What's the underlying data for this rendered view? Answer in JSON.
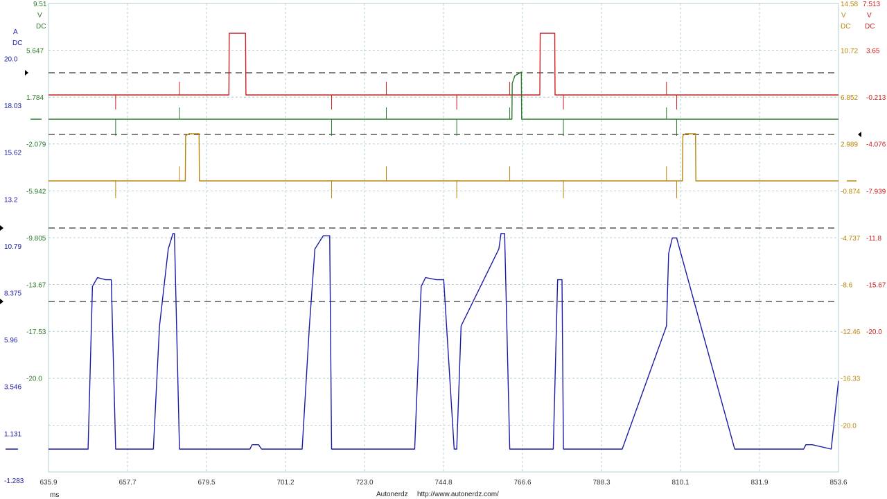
{
  "colors": {
    "current": "#1a1aa8",
    "signal_red": "#cc2020",
    "signal_green": "#2a7a2a",
    "signal_gold": "#b8860b",
    "grid": "#9fc4c8",
    "refline": "#000000"
  },
  "x_unit": "ms",
  "footer": {
    "brand": "Autonerdz",
    "url": "http://www.autonerdz.com/"
  },
  "axes": {
    "current": {
      "unit": "A",
      "coupling": "DC",
      "ticks": [
        "20.0",
        "18.03",
        "15.62",
        "13.2",
        "10.79",
        "8.375",
        "5.96",
        "3.546",
        "1.131",
        "-1.283"
      ]
    },
    "green": {
      "top": "9.51",
      "unit": "V",
      "coupling": "DC",
      "ticks": [
        "5.647",
        "1.784",
        "-2.079",
        "-5.942",
        "-9.805",
        "-13.67",
        "-17.53",
        "-20.0"
      ]
    },
    "gold": {
      "top": "14.58",
      "unit": "V",
      "coupling": "DC",
      "ticks": [
        "10.72",
        "6.852",
        "2.989",
        "-0.874",
        "-4.737",
        "-8.6",
        "-12.46",
        "-16.33",
        "-20.0"
      ]
    },
    "red": {
      "top": "7.513",
      "unit": "V",
      "coupling": "DC",
      "ticks": [
        "3.65",
        "-0.213",
        "-4.076",
        "-7.939",
        "-11.8",
        "-15.67",
        "-20.0"
      ]
    }
  },
  "chart_data": {
    "type": "line",
    "x_unit": "ms",
    "xlim": [
      635.9,
      853.6
    ],
    "x_ticks": [
      "635.9",
      "657.7",
      "679.5",
      "701.2",
      "723.0",
      "744.8",
      "766.6",
      "788.3",
      "810.1",
      "831.9",
      "853.6"
    ],
    "grid": true,
    "series": [
      {
        "channel": "current",
        "unit": "A",
        "ylim": [
          -1.283,
          21.6
        ],
        "x": [
          635.9,
          646.8,
          648.0,
          649.4,
          651.6,
          653.2,
          654.4,
          664.8,
          666.5,
          668.9,
          670.2,
          670.6,
          672.0,
          680.6,
          681.6,
          691.4,
          692.0,
          693.8,
          694.6,
          705.8,
          707.8,
          709.3,
          711.6,
          713.4,
          713.9,
          715.4,
          716.4,
          718.5,
          719.6,
          721.0,
          725.1,
          726.2,
          727.4,
          728.6,
          729.0,
          730.2,
          731.4,
          736.8,
          738.6,
          739.8,
          742.8,
          744.8,
          747.7,
          748.4,
          749.6,
          760.0,
          760.6,
          761.6,
          763.0,
          775.0,
          776.2,
          777.4,
          777.8,
          780.0,
          787.8,
          790.8,
          791.3,
          794.0,
          806.2,
          806.8,
          807.8,
          809.0,
          825.0,
          826.8,
          829.0,
          831.9,
          844.0,
          844.6,
          846.4,
          851.6,
          853.6
        ],
        "y": [
          0.5,
          0.5,
          7.9,
          8.3,
          8.2,
          8.2,
          0.5,
          0.5,
          6.1,
          9.6,
          10.3,
          10.3,
          0.5,
          0.5,
          0.5,
          0.5,
          0.7,
          0.7,
          0.5,
          0.5,
          6.1,
          9.6,
          10.2,
          10.2,
          0.5,
          0.5,
          0.5,
          0.5,
          0.5,
          0.5,
          0.5,
          0.5,
          0.5,
          0.5,
          0.5,
          0.5,
          0.5,
          0.5,
          7.9,
          8.3,
          8.2,
          8.2,
          0.5,
          0.5,
          6.1,
          9.6,
          10.3,
          10.3,
          0.5,
          0.5,
          8.2,
          8.2,
          0.5,
          0.5,
          0.5,
          0.5,
          0.5,
          0.5,
          6.1,
          9.4,
          10.1,
          10.1,
          0.5,
          0.5,
          0.5,
          0.5,
          0.5,
          0.7,
          0.7,
          0.5,
          3.6
        ]
      },
      {
        "channel": "red",
        "unit": "V",
        "ylim": [
          -20.0,
          7.513
        ],
        "x": [
          635.9,
          685.6,
          685.7,
          690.2,
          690.3,
          771.3,
          771.4,
          775.4,
          775.5,
          853.6
        ],
        "y": [
          -0.213,
          -0.213,
          4.6,
          4.6,
          -0.213,
          -0.213,
          4.6,
          4.6,
          -0.213,
          -0.213
        ]
      },
      {
        "channel": "green",
        "unit": "V",
        "ylim": [
          -20.0,
          9.51
        ],
        "x": [
          635.9,
          763.6,
          763.7,
          764.4,
          766.2,
          766.3,
          853.6
        ],
        "y": [
          0.2,
          0.2,
          2.1,
          2.5,
          2.7,
          0.2,
          0.2
        ]
      },
      {
        "channel": "gold",
        "unit": "V",
        "ylim": [
          -20.0,
          14.58
        ],
        "x": [
          635.9,
          673.6,
          673.7,
          674.6,
          677.4,
          677.5,
          810.6,
          810.7,
          811.4,
          814.2,
          814.3,
          853.6
        ],
        "y": [
          -0.874,
          -0.874,
          3.6,
          3.8,
          3.8,
          -0.874,
          -0.874,
          3.6,
          3.8,
          3.8,
          -0.874,
          -0.874
        ]
      }
    ]
  }
}
